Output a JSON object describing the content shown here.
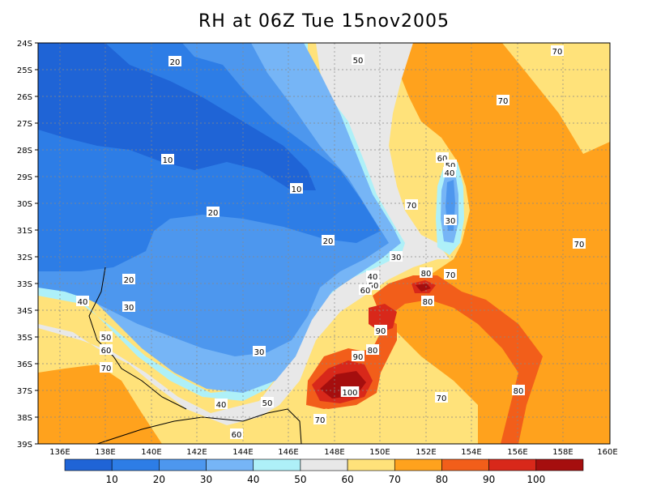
{
  "title": "RH at 06Z Tue 15nov2005",
  "map": {
    "lat_labels": [
      "24S",
      "25S",
      "26S",
      "27S",
      "28S",
      "29S",
      "30S",
      "31S",
      "32S",
      "33S",
      "34S",
      "35S",
      "36S",
      "37S",
      "38S",
      "39S"
    ],
    "lon_labels": [
      "136E",
      "138E",
      "140E",
      "142E",
      "144E",
      "146E",
      "148E",
      "150E",
      "152E",
      "154E",
      "156E",
      "158E",
      "160E"
    ],
    "contour_labels": [
      "20",
      "50",
      "70",
      "70",
      "10",
      "10",
      "20",
      "20",
      "60",
      "50",
      "40",
      "70",
      "30",
      "30",
      "20",
      "30",
      "40",
      "50",
      "60",
      "80",
      "70",
      "80",
      "90",
      "90",
      "80",
      "30",
      "40",
      "50",
      "60",
      "70",
      "40",
      "50",
      "60",
      "100",
      "70",
      "80",
      "70",
      "70"
    ]
  },
  "colorbar": {
    "levels": [
      "10",
      "20",
      "30",
      "40",
      "50",
      "60",
      "70",
      "80",
      "90",
      "100"
    ],
    "colors": [
      "#1f64d6",
      "#2d7de6",
      "#4d97ee",
      "#76b5f6",
      "#aef0f8",
      "#e8e8e8",
      "#ffe27a",
      "#ffa21d",
      "#f25e1a",
      "#d8281a",
      "#a50e0e"
    ]
  }
}
